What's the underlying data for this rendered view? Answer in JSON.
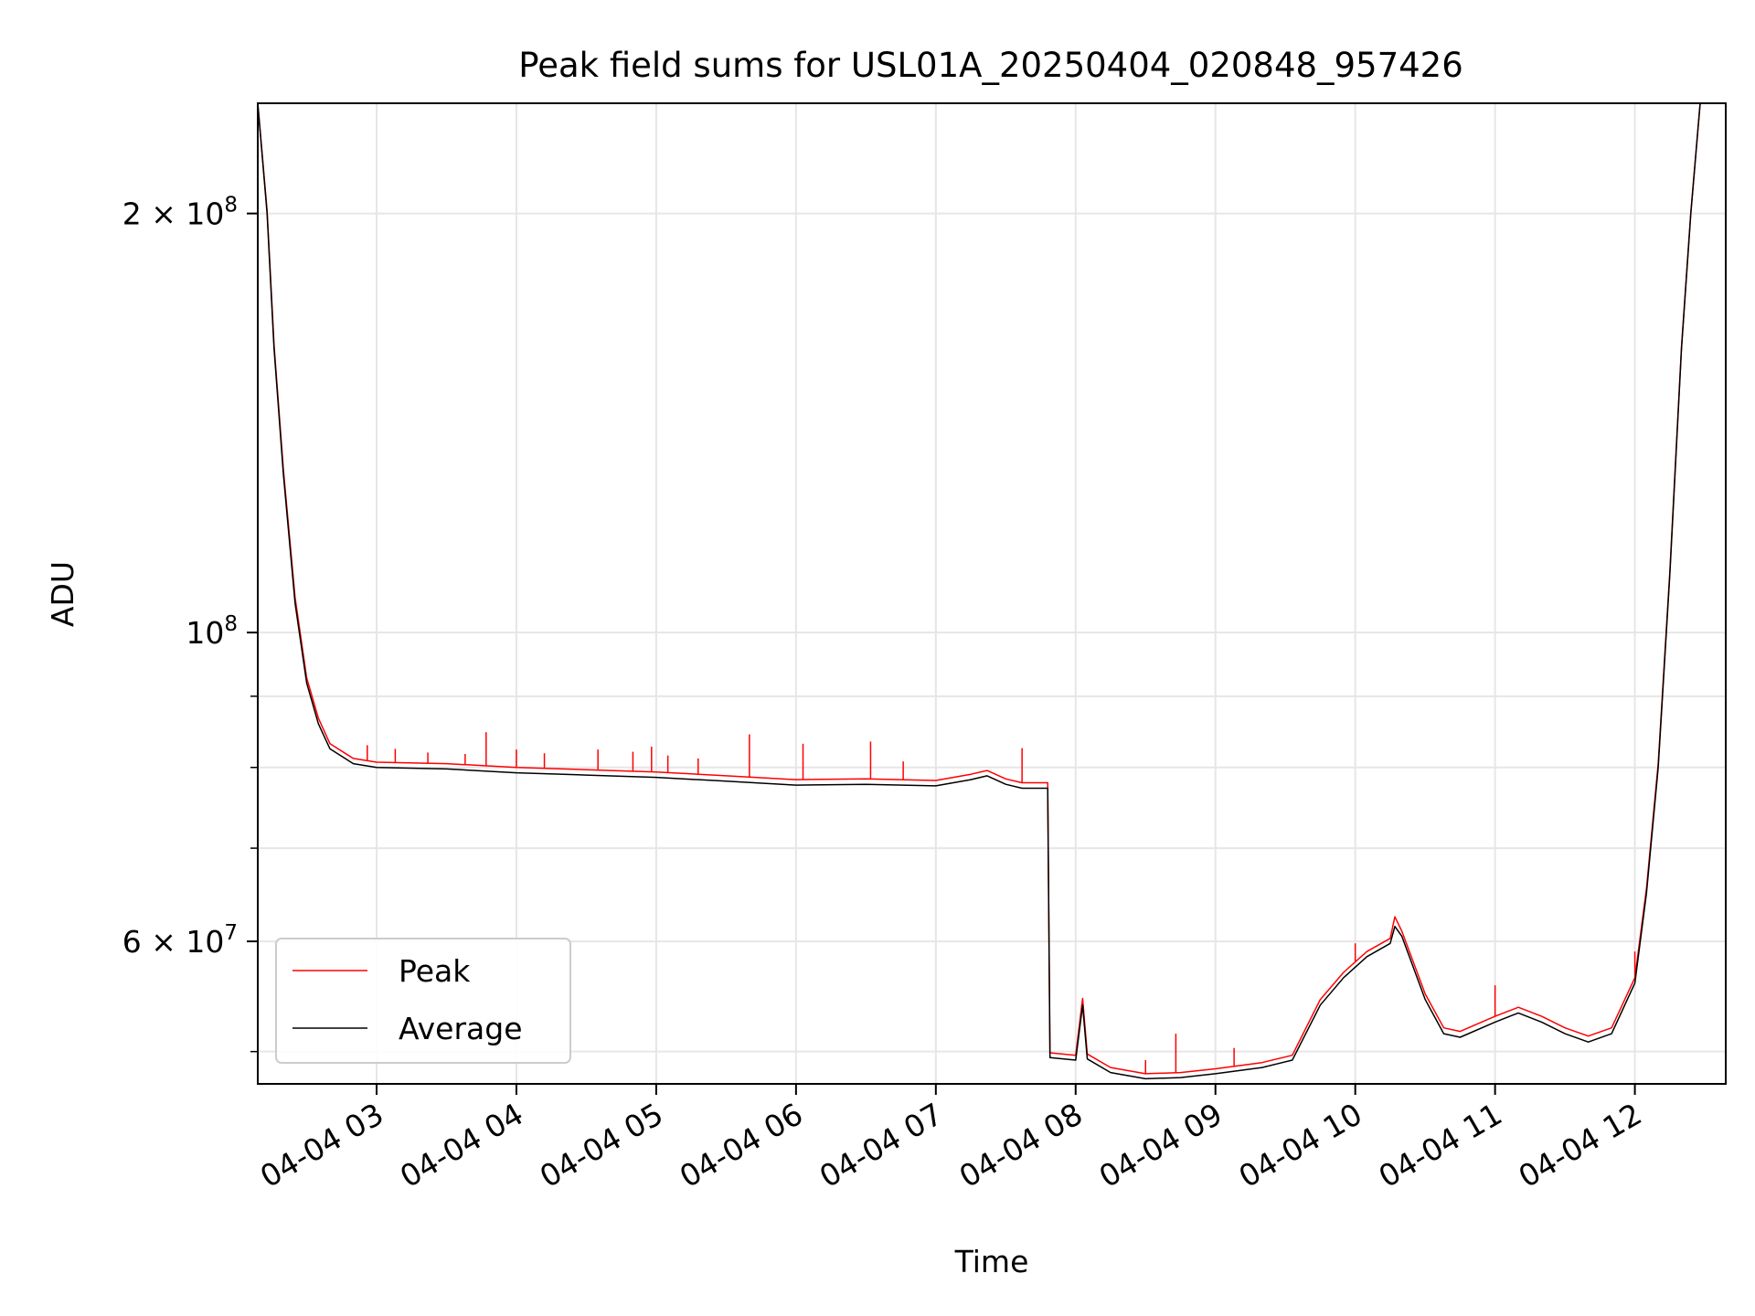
{
  "chart_data": {
    "type": "line",
    "title": "Peak field sums for USL01A_20250404_020848_957426",
    "xlabel": "Time",
    "ylabel": "ADU",
    "x_range": [
      "2025-04-04 02:09",
      "2025-04-04 12:39"
    ],
    "y_range": [
      47400000,
      240000000
    ],
    "y_scale": "log",
    "grid": true,
    "x_ticks": [
      {
        "value": "2025-04-04 03:00",
        "label": "04-04 03"
      },
      {
        "value": "2025-04-04 04:00",
        "label": "04-04 04"
      },
      {
        "value": "2025-04-04 05:00",
        "label": "04-04 05"
      },
      {
        "value": "2025-04-04 06:00",
        "label": "04-04 06"
      },
      {
        "value": "2025-04-04 07:00",
        "label": "04-04 07"
      },
      {
        "value": "2025-04-04 08:00",
        "label": "04-04 08"
      },
      {
        "value": "2025-04-04 09:00",
        "label": "04-04 09"
      },
      {
        "value": "2025-04-04 10:00",
        "label": "04-04 10"
      },
      {
        "value": "2025-04-04 11:00",
        "label": "04-04 11"
      },
      {
        "value": "2025-04-04 12:00",
        "label": "04-04 12"
      }
    ],
    "y_ticks_major": [
      {
        "value": 200000000,
        "base": "2 × 10",
        "exp": "8"
      },
      {
        "value": 100000000,
        "base": "10",
        "exp": "8"
      },
      {
        "value": 60000000,
        "base": "6 × 10",
        "exp": "7"
      }
    ],
    "y_ticks_minor": [
      50000000,
      70000000,
      80000000,
      90000000
    ],
    "legend": {
      "position": "lower-left"
    },
    "series": [
      {
        "name": "Average",
        "color": "#000000",
        "points": [
          [
            "2025-04-04 02:09",
            240000000
          ],
          [
            "2025-04-04 02:13",
            200000000
          ],
          [
            "2025-04-04 02:16",
            160000000
          ],
          [
            "2025-04-04 02:20",
            130000000
          ],
          [
            "2025-04-04 02:25",
            105000000
          ],
          [
            "2025-04-04 02:30",
            92000000
          ],
          [
            "2025-04-04 02:35",
            86000000
          ],
          [
            "2025-04-04 02:40",
            82500000
          ],
          [
            "2025-04-04 02:50",
            80500000
          ],
          [
            "2025-04-04 03:00",
            80000000
          ],
          [
            "2025-04-04 03:30",
            79800000
          ],
          [
            "2025-04-04 04:00",
            79300000
          ],
          [
            "2025-04-04 04:30",
            79000000
          ],
          [
            "2025-04-04 05:00",
            78700000
          ],
          [
            "2025-04-04 05:30",
            78200000
          ],
          [
            "2025-04-04 06:00",
            77700000
          ],
          [
            "2025-04-04 06:30",
            77800000
          ],
          [
            "2025-04-04 07:00",
            77600000
          ],
          [
            "2025-04-04 07:15",
            78400000
          ],
          [
            "2025-04-04 07:22",
            78900000
          ],
          [
            "2025-04-04 07:30",
            77800000
          ],
          [
            "2025-04-04 07:37",
            77300000
          ],
          [
            "2025-04-04 07:48",
            77300000
          ],
          [
            "2025-04-04 07:49",
            49500000
          ],
          [
            "2025-04-04 08:00",
            49300000
          ],
          [
            "2025-04-04 08:03",
            54000000
          ],
          [
            "2025-04-04 08:05",
            49400000
          ],
          [
            "2025-04-04 08:15",
            48300000
          ],
          [
            "2025-04-04 08:30",
            47800000
          ],
          [
            "2025-04-04 08:45",
            47900000
          ],
          [
            "2025-04-04 09:00",
            48200000
          ],
          [
            "2025-04-04 09:20",
            48700000
          ],
          [
            "2025-04-04 09:33",
            49300000
          ],
          [
            "2025-04-04 09:45",
            54000000
          ],
          [
            "2025-04-04 09:55",
            56500000
          ],
          [
            "2025-04-04 10:05",
            58500000
          ],
          [
            "2025-04-04 10:15",
            59800000
          ],
          [
            "2025-04-04 10:17",
            61500000
          ],
          [
            "2025-04-04 10:20",
            60500000
          ],
          [
            "2025-04-04 10:30",
            54500000
          ],
          [
            "2025-04-04 10:38",
            51500000
          ],
          [
            "2025-04-04 10:45",
            51200000
          ],
          [
            "2025-04-04 11:00",
            52500000
          ],
          [
            "2025-04-04 11:10",
            53300000
          ],
          [
            "2025-04-04 11:20",
            52500000
          ],
          [
            "2025-04-04 11:30",
            51500000
          ],
          [
            "2025-04-04 11:40",
            50800000
          ],
          [
            "2025-04-04 11:50",
            51500000
          ],
          [
            "2025-04-04 12:00",
            56000000
          ],
          [
            "2025-04-04 12:05",
            65000000
          ],
          [
            "2025-04-04 12:10",
            80000000
          ],
          [
            "2025-04-04 12:15",
            110000000
          ],
          [
            "2025-04-04 12:20",
            160000000
          ],
          [
            "2025-04-04 12:24",
            200000000
          ],
          [
            "2025-04-04 12:28",
            240000000
          ],
          [
            "2025-04-04 12:38",
            240000000
          ]
        ]
      },
      {
        "name": "Peak",
        "color": "#ff0000",
        "points": [
          [
            "2025-04-04 02:09",
            240000000
          ],
          [
            "2025-04-04 02:13",
            201000000
          ],
          [
            "2025-04-04 02:16",
            161000000
          ],
          [
            "2025-04-04 02:20",
            131000000
          ],
          [
            "2025-04-04 02:25",
            106000000
          ],
          [
            "2025-04-04 02:30",
            92800000
          ],
          [
            "2025-04-04 02:35",
            86800000
          ],
          [
            "2025-04-04 02:40",
            83200000
          ],
          [
            "2025-04-04 02:50",
            81200000
          ],
          [
            "2025-04-04 03:00",
            80700000
          ],
          [
            "2025-04-04 03:30",
            80500000
          ],
          [
            "2025-04-04 04:00",
            80000000
          ],
          [
            "2025-04-04 04:30",
            79700000
          ],
          [
            "2025-04-04 05:00",
            79400000
          ],
          [
            "2025-04-04 05:30",
            78900000
          ],
          [
            "2025-04-04 06:00",
            78400000
          ],
          [
            "2025-04-04 06:30",
            78500000
          ],
          [
            "2025-04-04 07:00",
            78300000
          ],
          [
            "2025-04-04 07:15",
            79100000
          ],
          [
            "2025-04-04 07:22",
            79600000
          ],
          [
            "2025-04-04 07:30",
            78500000
          ],
          [
            "2025-04-04 07:37",
            78000000
          ],
          [
            "2025-04-04 07:48",
            78000000
          ],
          [
            "2025-04-04 07:49",
            49900000
          ],
          [
            "2025-04-04 08:00",
            49700000
          ],
          [
            "2025-04-04 08:03",
            54600000
          ],
          [
            "2025-04-04 08:05",
            49800000
          ],
          [
            "2025-04-04 08:15",
            48700000
          ],
          [
            "2025-04-04 08:30",
            48200000
          ],
          [
            "2025-04-04 08:45",
            48300000
          ],
          [
            "2025-04-04 09:00",
            48600000
          ],
          [
            "2025-04-04 09:20",
            49100000
          ],
          [
            "2025-04-04 09:33",
            49700000
          ],
          [
            "2025-04-04 09:45",
            54500000
          ],
          [
            "2025-04-04 09:55",
            57000000
          ],
          [
            "2025-04-04 10:05",
            59000000
          ],
          [
            "2025-04-04 10:15",
            60300000
          ],
          [
            "2025-04-04 10:17",
            62500000
          ],
          [
            "2025-04-04 10:20",
            61000000
          ],
          [
            "2025-04-04 10:30",
            55000000
          ],
          [
            "2025-04-04 10:38",
            52000000
          ],
          [
            "2025-04-04 10:45",
            51700000
          ],
          [
            "2025-04-04 11:00",
            53000000
          ],
          [
            "2025-04-04 11:10",
            53800000
          ],
          [
            "2025-04-04 11:20",
            53000000
          ],
          [
            "2025-04-04 11:30",
            52000000
          ],
          [
            "2025-04-04 11:40",
            51300000
          ],
          [
            "2025-04-04 11:50",
            52000000
          ],
          [
            "2025-04-04 12:00",
            56500000
          ],
          [
            "2025-04-04 12:05",
            65500000
          ],
          [
            "2025-04-04 12:10",
            80500000
          ],
          [
            "2025-04-04 12:15",
            110500000
          ],
          [
            "2025-04-04 12:20",
            160500000
          ],
          [
            "2025-04-04 12:24",
            200500000
          ],
          [
            "2025-04-04 12:28",
            240000000
          ],
          [
            "2025-04-04 12:38",
            240000000
          ]
        ],
        "spikes": [
          [
            "2025-04-04 02:56",
            83000000
          ],
          [
            "2025-04-04 03:08",
            82500000
          ],
          [
            "2025-04-04 03:22",
            82000000
          ],
          [
            "2025-04-04 03:38",
            81800000
          ],
          [
            "2025-04-04 03:47",
            84800000
          ],
          [
            "2025-04-04 04:00",
            82400000
          ],
          [
            "2025-04-04 04:12",
            81900000
          ],
          [
            "2025-04-04 04:35",
            82400000
          ],
          [
            "2025-04-04 04:50",
            82100000
          ],
          [
            "2025-04-04 04:58",
            82800000
          ],
          [
            "2025-04-04 05:05",
            81600000
          ],
          [
            "2025-04-04 05:18",
            81200000
          ],
          [
            "2025-04-04 05:40",
            84500000
          ],
          [
            "2025-04-04 06:03",
            83200000
          ],
          [
            "2025-04-04 06:32",
            83500000
          ],
          [
            "2025-04-04 06:46",
            80800000
          ],
          [
            "2025-04-04 07:37",
            82600000
          ],
          [
            "2025-04-04 08:30",
            49300000
          ],
          [
            "2025-04-04 08:43",
            51500000
          ],
          [
            "2025-04-04 09:08",
            50300000
          ],
          [
            "2025-04-04 10:00",
            59800000
          ],
          [
            "2025-04-04 11:00",
            55800000
          ],
          [
            "2025-04-04 12:00",
            59000000
          ]
        ]
      }
    ]
  }
}
